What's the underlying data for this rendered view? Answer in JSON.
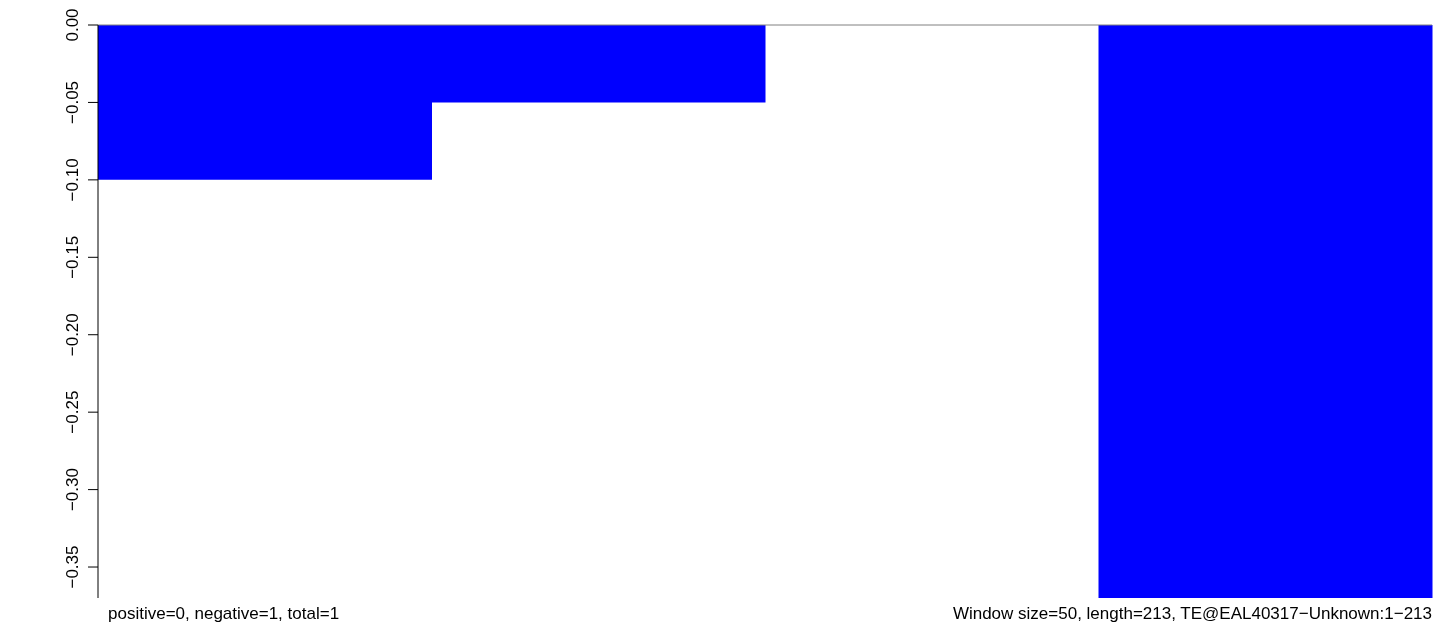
{
  "chart_data": {
    "type": "bar",
    "categories": [
      null,
      null,
      null,
      null
    ],
    "values": [
      -0.1,
      -0.05,
      0,
      -0.37
    ],
    "color": "#0000ff",
    "ylim": [
      -0.37,
      0
    ],
    "yticks": [
      {
        "value": 0,
        "label": "0.00"
      },
      {
        "value": -0.05,
        "label": "−0.05"
      },
      {
        "value": -0.1,
        "label": "−0.10"
      },
      {
        "value": -0.15,
        "label": "−0.15"
      },
      {
        "value": -0.2,
        "label": "−0.20"
      },
      {
        "value": -0.25,
        "label": "−0.25"
      },
      {
        "value": -0.3,
        "label": "−0.30"
      },
      {
        "value": -0.35,
        "label": "−0.35"
      }
    ],
    "ref_lines": [
      {
        "axis": "y",
        "value": 0,
        "color": "#808080"
      }
    ],
    "annotations": [
      "positive=0, negative=1, total=1",
      "Window size=50, length=213, TE@EAL40317−Unknown:1−213"
    ],
    "tick_labels": "y",
    "grid": false,
    "legend": false
  }
}
